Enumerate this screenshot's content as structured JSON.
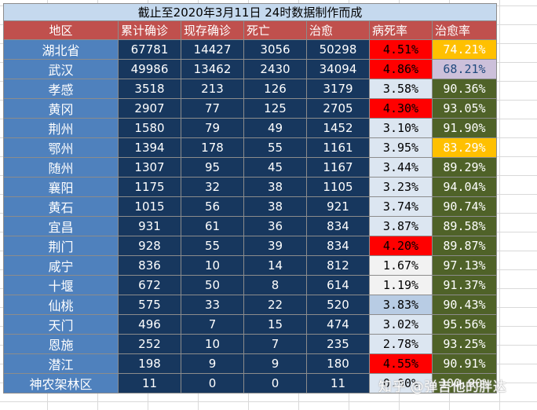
{
  "title": "截止至2020年3月11日  24时数据制作而成",
  "headers": [
    "地区",
    "累计确诊",
    "现存确诊",
    "死亡",
    "治愈",
    "病死率",
    "治愈率"
  ],
  "rows": [
    {
      "region": "湖北省",
      "confirmed": "67781",
      "existing": "14427",
      "deaths": "3056",
      "cured": "50298",
      "fatality": "4.51%",
      "cure_rate": "74.21%"
    },
    {
      "region": "武汉",
      "confirmed": "49986",
      "existing": "13462",
      "deaths": "2430",
      "cured": "34094",
      "fatality": "4.86%",
      "cure_rate": "68.21%"
    },
    {
      "region": "孝感",
      "confirmed": "3518",
      "existing": "213",
      "deaths": "126",
      "cured": "3179",
      "fatality": "3.58%",
      "cure_rate": "90.36%"
    },
    {
      "region": "黄冈",
      "confirmed": "2907",
      "existing": "77",
      "deaths": "125",
      "cured": "2705",
      "fatality": "4.30%",
      "cure_rate": "93.05%"
    },
    {
      "region": "荆州",
      "confirmed": "1580",
      "existing": "79",
      "deaths": "49",
      "cured": "1452",
      "fatality": "3.10%",
      "cure_rate": "91.90%"
    },
    {
      "region": "鄂州",
      "confirmed": "1394",
      "existing": "178",
      "deaths": "55",
      "cured": "1161",
      "fatality": "3.95%",
      "cure_rate": "83.29%"
    },
    {
      "region": "随州",
      "confirmed": "1307",
      "existing": "95",
      "deaths": "45",
      "cured": "1167",
      "fatality": "3.44%",
      "cure_rate": "89.29%"
    },
    {
      "region": "襄阳",
      "confirmed": "1175",
      "existing": "32",
      "deaths": "38",
      "cured": "1105",
      "fatality": "3.23%",
      "cure_rate": "94.04%"
    },
    {
      "region": "黄石",
      "confirmed": "1015",
      "existing": "56",
      "deaths": "38",
      "cured": "921",
      "fatality": "3.74%",
      "cure_rate": "90.74%"
    },
    {
      "region": "宜昌",
      "confirmed": "931",
      "existing": "61",
      "deaths": "36",
      "cured": "834",
      "fatality": "3.87%",
      "cure_rate": "89.58%"
    },
    {
      "region": "荆门",
      "confirmed": "928",
      "existing": "55",
      "deaths": "39",
      "cured": "834",
      "fatality": "4.20%",
      "cure_rate": "89.87%"
    },
    {
      "region": "咸宁",
      "confirmed": "836",
      "existing": "10",
      "deaths": "14",
      "cured": "812",
      "fatality": "1.67%",
      "cure_rate": "97.13%"
    },
    {
      "region": "十堰",
      "confirmed": "672",
      "existing": "50",
      "deaths": "8",
      "cured": "614",
      "fatality": "1.19%",
      "cure_rate": "91.37%"
    },
    {
      "region": "仙桃",
      "confirmed": "575",
      "existing": "33",
      "deaths": "22",
      "cured": "520",
      "fatality": "3.83%",
      "cure_rate": "90.43%"
    },
    {
      "region": "天门",
      "confirmed": "496",
      "existing": "7",
      "deaths": "15",
      "cured": "474",
      "fatality": "3.02%",
      "cure_rate": "95.56%"
    },
    {
      "region": "恩施",
      "confirmed": "252",
      "existing": "10",
      "deaths": "7",
      "cured": "235",
      "fatality": "2.78%",
      "cure_rate": "93.25%"
    },
    {
      "region": "潜江",
      "confirmed": "198",
      "existing": "9",
      "deaths": "9",
      "cured": "180",
      "fatality": "4.55%",
      "cure_rate": "90.91%"
    },
    {
      "region": "神农架林区",
      "confirmed": "11",
      "existing": "0",
      "deaths": "0",
      "cured": "11",
      "fatality": "0.00%",
      "cure_rate": "100.00%"
    }
  ],
  "fatality_fill": [
    "red",
    "red",
    "pale",
    "red",
    "pale",
    "pale",
    "pale",
    "pale",
    "pale",
    "pale",
    "red",
    "white",
    "white",
    "blue",
    "pale",
    "pale",
    "red",
    "pale"
  ],
  "cure_fill": [
    "gold",
    "lav2",
    "olive",
    "olive",
    "olive",
    "gold",
    "olive",
    "olive",
    "olive",
    "olive",
    "olive",
    "olive",
    "olive",
    "olive",
    "olive",
    "olive",
    "olive",
    "olive"
  ],
  "watermark": "知乎 @弹吉他的胖达"
}
